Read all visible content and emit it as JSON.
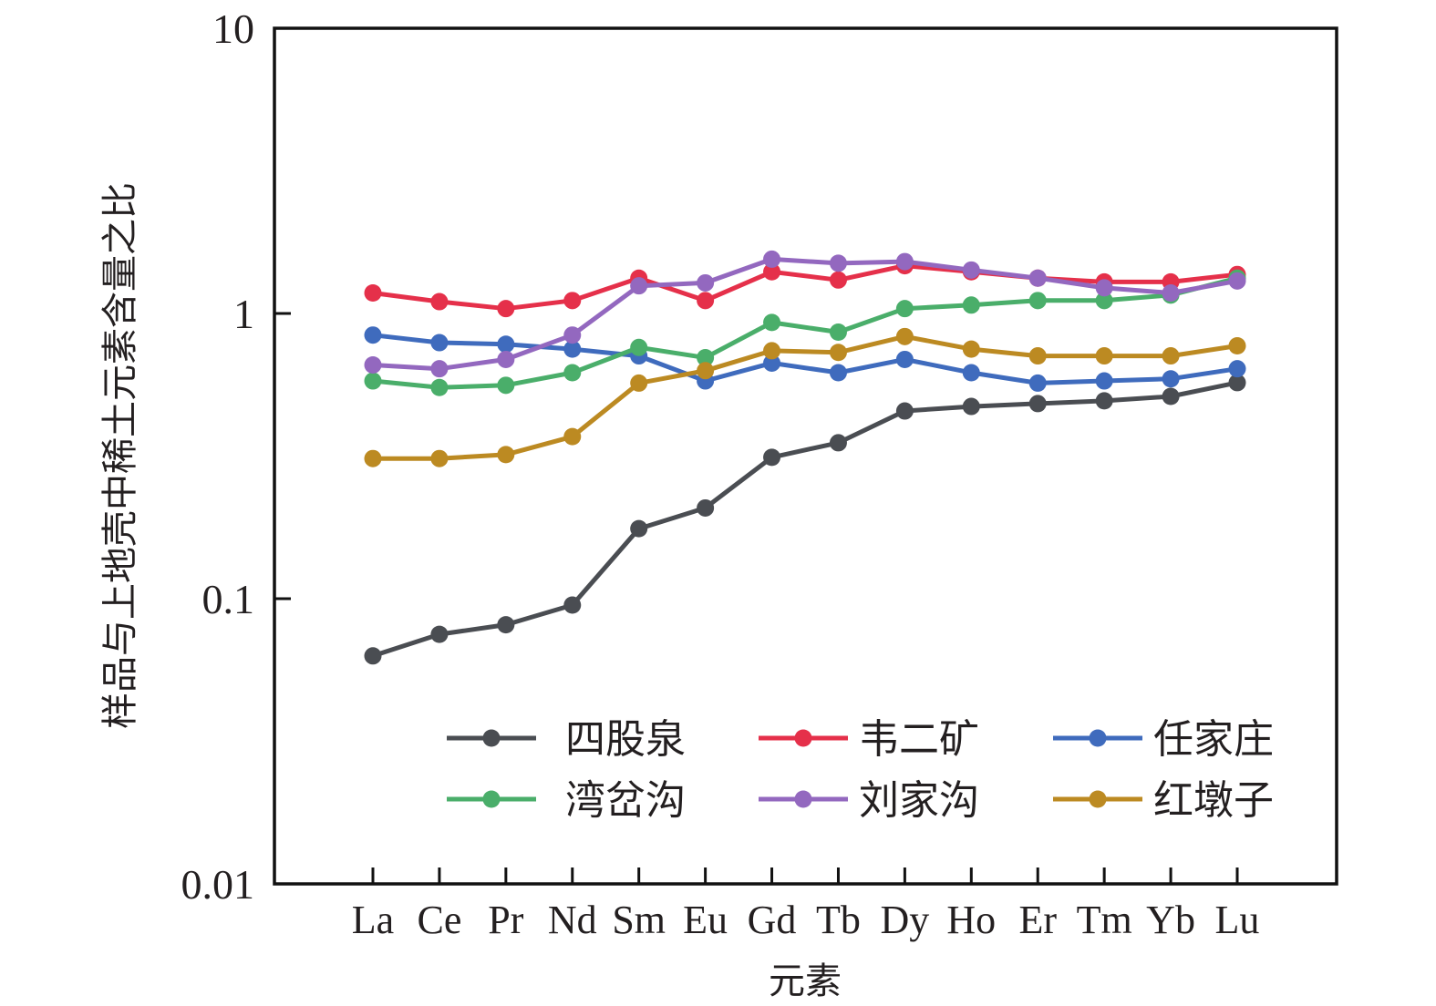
{
  "chart_data": {
    "type": "line",
    "title": "",
    "xlabel": "元素",
    "ylabel": "样品与上地壳中稀土元素含量之比",
    "yscale": "log",
    "ylim": [
      0.01,
      10
    ],
    "yticks": [
      {
        "value": 10,
        "label": "10"
      },
      {
        "value": 1,
        "label": "1"
      },
      {
        "value": 0.1,
        "label": "0.1"
      },
      {
        "value": 0.01,
        "label": "0.01"
      }
    ],
    "categories": [
      "La",
      "Ce",
      "Pr",
      "Nd",
      "Sm",
      "Eu",
      "Gd",
      "Tb",
      "Dy",
      "Ho",
      "Er",
      "Tm",
      "Yb",
      "Lu"
    ],
    "grid": false,
    "legend_position": "bottom-right",
    "series": [
      {
        "name": "四股泉",
        "color": "#4a4d52",
        "values": [
          0.063,
          0.075,
          0.081,
          0.095,
          0.176,
          0.208,
          0.313,
          0.352,
          0.455,
          0.472,
          0.483,
          0.494,
          0.512,
          0.572
        ]
      },
      {
        "name": "韦二矿",
        "color": "#e5304a",
        "values": [
          1.18,
          1.1,
          1.04,
          1.11,
          1.33,
          1.11,
          1.4,
          1.31,
          1.47,
          1.4,
          1.33,
          1.29,
          1.29,
          1.37
        ]
      },
      {
        "name": "任家庄",
        "color": "#3f6bbd",
        "values": [
          0.84,
          0.79,
          0.78,
          0.75,
          0.71,
          0.58,
          0.67,
          0.62,
          0.69,
          0.62,
          0.57,
          0.58,
          0.59,
          0.64
        ]
      },
      {
        "name": "湾岔沟",
        "color": "#4aae6a",
        "values": [
          0.58,
          0.55,
          0.56,
          0.62,
          0.76,
          0.7,
          0.93,
          0.86,
          1.04,
          1.07,
          1.11,
          1.11,
          1.16,
          1.33
        ]
      },
      {
        "name": "刘家沟",
        "color": "#9368bf",
        "values": [
          0.66,
          0.64,
          0.69,
          0.84,
          1.25,
          1.28,
          1.55,
          1.5,
          1.52,
          1.42,
          1.33,
          1.23,
          1.18,
          1.3
        ]
      },
      {
        "name": "红墩子",
        "color": "#bc8a22",
        "values": [
          0.31,
          0.31,
          0.32,
          0.37,
          0.57,
          0.63,
          0.74,
          0.73,
          0.83,
          0.75,
          0.71,
          0.71,
          0.71,
          0.77
        ]
      }
    ]
  }
}
